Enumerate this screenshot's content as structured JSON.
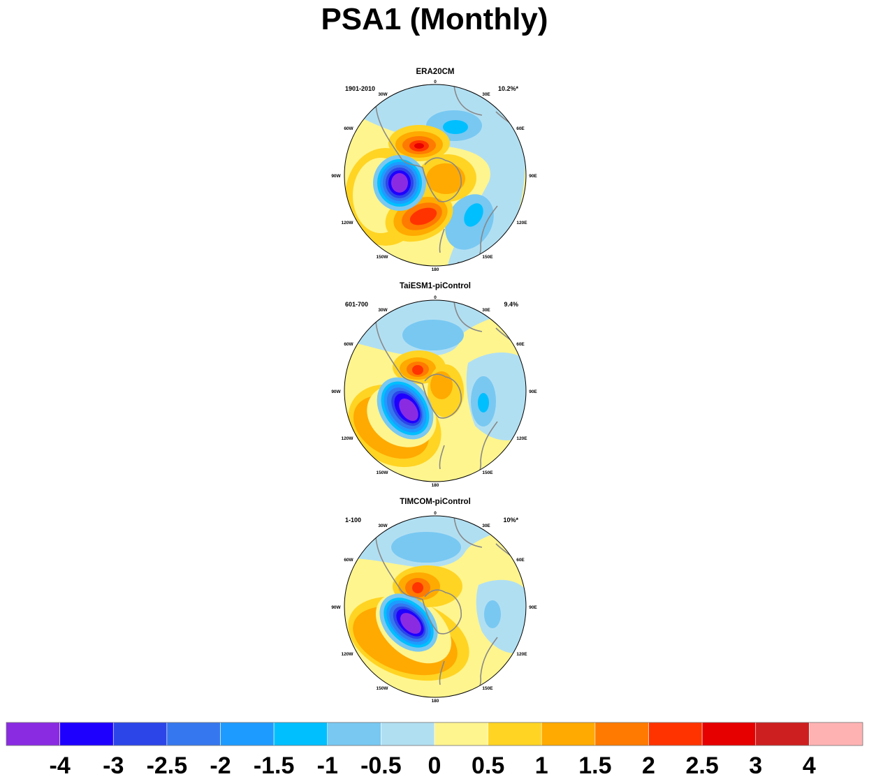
{
  "figure": {
    "title": "PSA1 (Monthly)"
  },
  "panels": [
    {
      "name": "ERA20CM",
      "period": "1901-2010",
      "variance": "10.2%*"
    },
    {
      "name": "TaiESM1-piControl",
      "period": "601-700",
      "variance": "9.4%"
    },
    {
      "name": "TIMCOM-piControl",
      "period": "1-100",
      "variance": "10%*"
    }
  ],
  "longitude_labels": {
    "lon_0": "0",
    "lon_30e": "30E",
    "lon_60e": "60E",
    "lon_90e": "90E",
    "lon_120e": "120E",
    "lon_150e": "150E",
    "lon_180": "180",
    "lon_150w": "150W",
    "lon_120w": "120W",
    "lon_90w": "90W",
    "lon_60w": "60W",
    "lon_30w": "30W"
  },
  "colorbar": {
    "colors": [
      "#8a2be2",
      "#1e00ff",
      "#2b45e8",
      "#3577ee",
      "#1e9bff",
      "#00bfff",
      "#78c8f2",
      "#b1dff2",
      "#fff58e",
      "#ffd423",
      "#ffaa00",
      "#ff7a00",
      "#ff3300",
      "#e60000",
      "#cd1f1f",
      "#ffb2b2"
    ],
    "labels": [
      "-4",
      "-3",
      "-2.5",
      "-2",
      "-1.5",
      "-1",
      "-0.5",
      "0",
      "0.5",
      "1",
      "1.5",
      "2",
      "2.5",
      "3",
      "4"
    ]
  }
}
